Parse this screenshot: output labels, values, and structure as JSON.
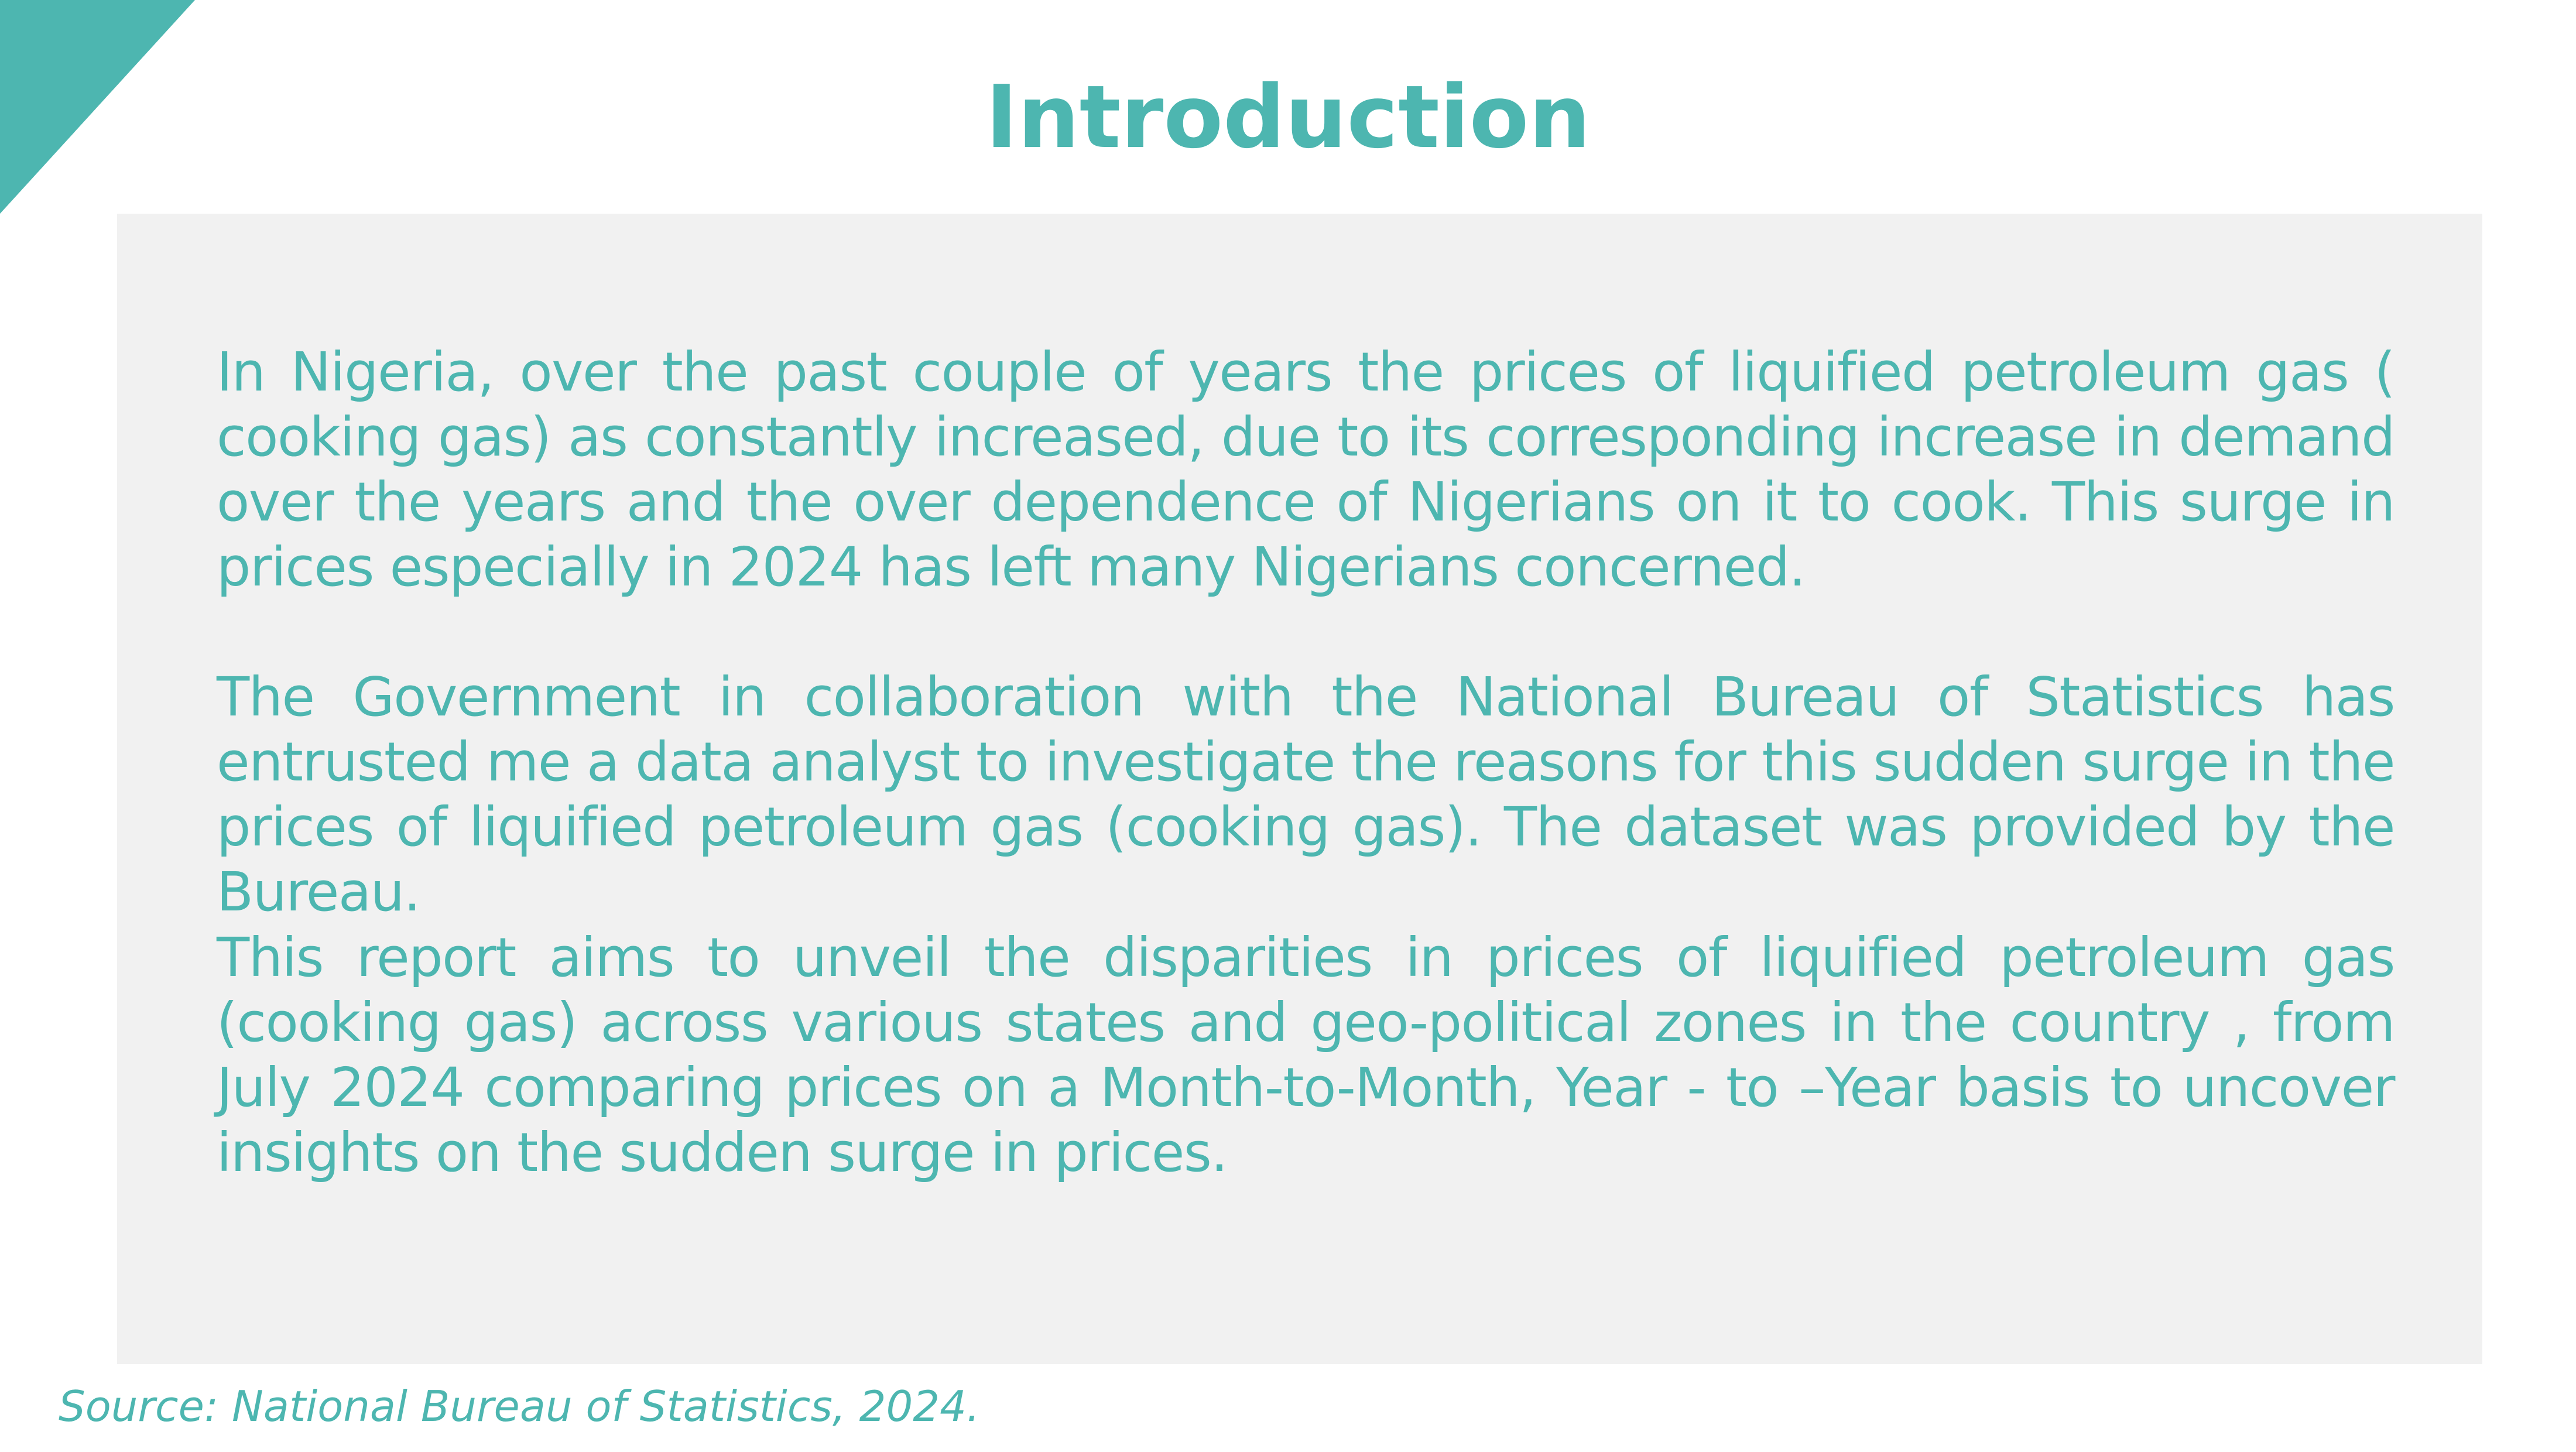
{
  "slide": {
    "title": "Introduction",
    "paragraphs": [
      "In Nigeria, over the past couple of years the prices of liquified petroleum gas  ( cooking gas) as constantly increased, due to its corresponding increase  in demand over the years and the over dependence of Nigerians on it to cook. This surge in prices especially in 2024 has left many Nigerians concerned.",
      "The Government in collaboration with the National Bureau of Statistics has entrusted me a data analyst to investigate the reasons for this sudden surge in the prices of liquified petroleum gas (cooking gas). The dataset was provided by the Bureau.",
      "This report aims to unveil  the disparities in prices of liquified petroleum gas (cooking gas) across various states and geo-political zones in the country , from July 2024 comparing prices on a Month-to-Month, Year - to –Year basis to uncover insights on the sudden surge in prices."
    ],
    "source": "Source: National Bureau of Statistics, 2024."
  },
  "colors": {
    "accent": "#4db6b0",
    "panel_background": "#f1f1f1",
    "page_background": "#ffffff"
  }
}
